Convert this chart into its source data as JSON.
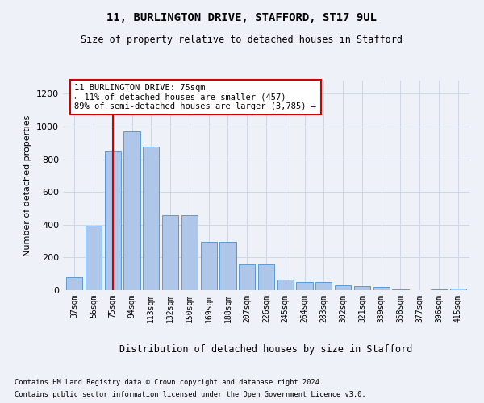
{
  "title_line1": "11, BURLINGTON DRIVE, STAFFORD, ST17 9UL",
  "title_line2": "Size of property relative to detached houses in Stafford",
  "xlabel": "Distribution of detached houses by size in Stafford",
  "ylabel": "Number of detached properties",
  "categories": [
    "37sqm",
    "56sqm",
    "75sqm",
    "94sqm",
    "113sqm",
    "132sqm",
    "150sqm",
    "169sqm",
    "188sqm",
    "207sqm",
    "226sqm",
    "245sqm",
    "264sqm",
    "283sqm",
    "302sqm",
    "321sqm",
    "339sqm",
    "358sqm",
    "377sqm",
    "396sqm",
    "415sqm"
  ],
  "values": [
    80,
    395,
    850,
    970,
    875,
    460,
    460,
    295,
    295,
    160,
    160,
    65,
    50,
    50,
    30,
    25,
    18,
    5,
    0,
    5,
    10
  ],
  "bar_color": "#aec6e8",
  "bar_edge_color": "#5b9bd5",
  "grid_color": "#d0d8e8",
  "vline_x": 2,
  "vline_color": "#cc0000",
  "annotation_text": "11 BURLINGTON DRIVE: 75sqm\n← 11% of detached houses are smaller (457)\n89% of semi-detached houses are larger (3,785) →",
  "annotation_box_color": "#ffffff",
  "annotation_box_edge": "#cc0000",
  "ylim": [
    0,
    1280
  ],
  "yticks": [
    0,
    200,
    400,
    600,
    800,
    1000,
    1200
  ],
  "footnote1": "Contains HM Land Registry data © Crown copyright and database right 2024.",
  "footnote2": "Contains public sector information licensed under the Open Government Licence v3.0.",
  "bg_color": "#eef2f8"
}
